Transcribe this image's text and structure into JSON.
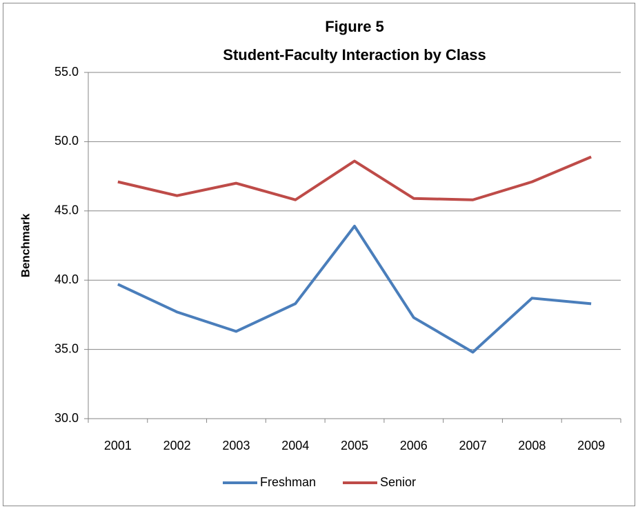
{
  "chart_data": {
    "type": "line",
    "title": "Figure 5",
    "subtitle": "Student-Faculty Interaction by Class",
    "y_label": "Benchmark",
    "categories": [
      "2001",
      "2002",
      "2003",
      "2004",
      "2005",
      "2006",
      "2007",
      "2008",
      "2009"
    ],
    "series": [
      {
        "name": "Freshman",
        "color": "#4a7ebb",
        "values": [
          39.7,
          37.7,
          36.3,
          38.3,
          43.9,
          37.3,
          34.8,
          38.7,
          38.3
        ]
      },
      {
        "name": "Senior",
        "color": "#be4b48",
        "values": [
          47.1,
          46.1,
          47.0,
          45.8,
          48.6,
          45.9,
          45.8,
          47.1,
          48.9
        ]
      }
    ],
    "ylim": [
      30,
      55
    ],
    "yticks": [
      {
        "value": 30,
        "label": "30.0"
      },
      {
        "value": 35,
        "label": "35.0"
      },
      {
        "value": 40,
        "label": "40.0"
      },
      {
        "value": 45,
        "label": "45.0"
      },
      {
        "value": 50,
        "label": "50.0"
      },
      {
        "value": 55,
        "label": "55.0"
      }
    ],
    "grid": true,
    "legend": "bottom"
  }
}
